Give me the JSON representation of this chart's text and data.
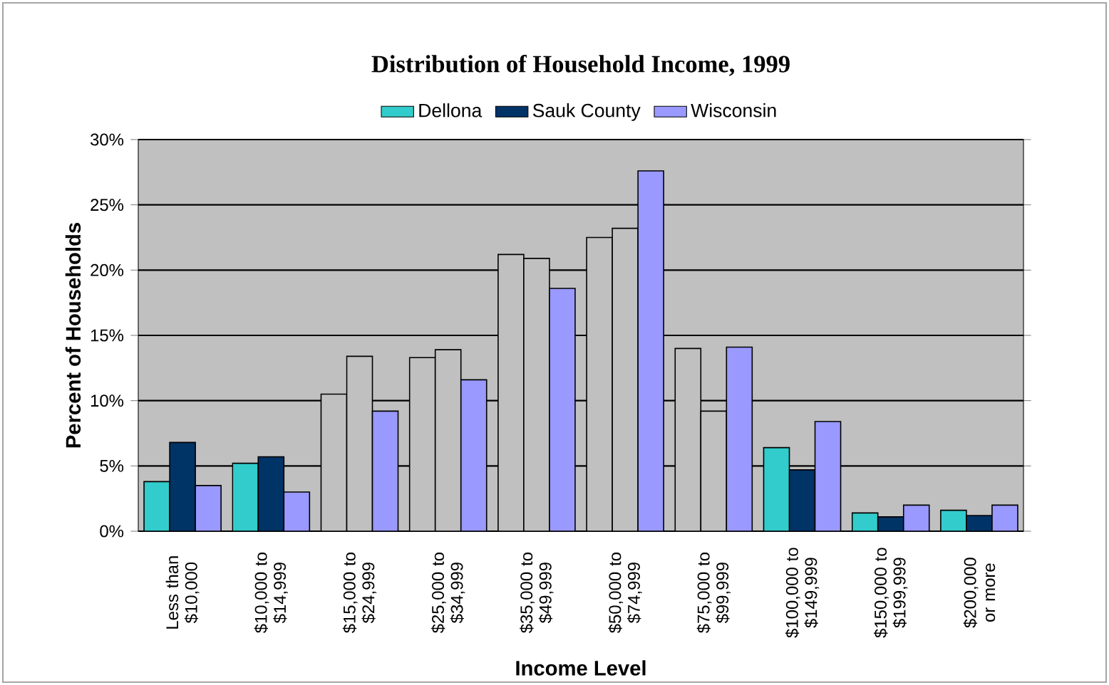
{
  "chart_data": {
    "type": "bar",
    "title": "Distribution of Household Income, 1999",
    "xlabel": "Income Level",
    "ylabel": "Percent of Households",
    "categories": [
      "Less than $10,000",
      "$10,000 to $14,999",
      "$15,000 to $24,999",
      "$25,000 to $34,999",
      "$35,000 to $49,999",
      "$50,000 to $74,999",
      "$75,000 to $99,999",
      "$100,000 to $149,999",
      "$150,000 to $199,999",
      "$200,000 or more"
    ],
    "series": [
      {
        "name": "Dellona",
        "color": "#33cccc",
        "colors": [
          "#33cccc",
          "#33cccc",
          "#c0c0c0",
          "#c0c0c0",
          "#c0c0c0",
          "#c0c0c0",
          "#c0c0c0",
          "#33cccc",
          "#33cccc",
          "#33cccc"
        ],
        "values": [
          3.8,
          5.2,
          10.5,
          13.3,
          21.2,
          22.5,
          14.0,
          6.4,
          1.4,
          1.6
        ]
      },
      {
        "name": "Sauk County",
        "color": "#003366",
        "colors": [
          "#003366",
          "#003366",
          "#c0c0c0",
          "#c0c0c0",
          "#c0c0c0",
          "#c0c0c0",
          "#c0c0c0",
          "#003366",
          "#003366",
          "#003366"
        ],
        "values": [
          6.8,
          5.7,
          13.4,
          13.9,
          20.9,
          23.2,
          9.2,
          4.7,
          1.1,
          1.2
        ]
      },
      {
        "name": "Wisconsin",
        "color": "#9999ff",
        "values": [
          3.5,
          3.0,
          9.2,
          11.6,
          18.6,
          27.6,
          14.1,
          8.4,
          2.0,
          2.0
        ]
      }
    ],
    "ylim": [
      0,
      30
    ],
    "yticks": [
      {
        "value": 0,
        "label": "0%"
      },
      {
        "value": 5,
        "label": "5%"
      },
      {
        "value": 10,
        "label": "10%"
      },
      {
        "value": 15,
        "label": "15%"
      },
      {
        "value": 20,
        "label": "20%"
      },
      {
        "value": 25,
        "label": "25%"
      },
      {
        "value": 30,
        "label": "30%"
      }
    ],
    "grid": "y",
    "legend": "top"
  }
}
